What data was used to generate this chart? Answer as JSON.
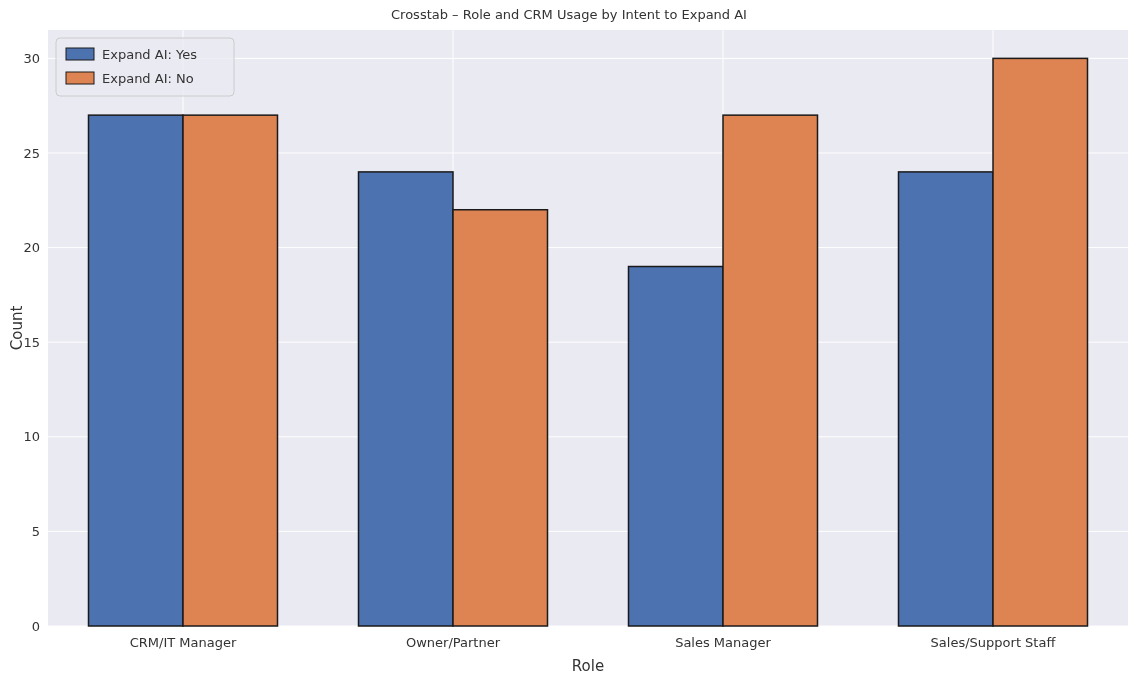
{
  "chart_data": {
    "type": "bar",
    "title": "Crosstab – Role and CRM Usage by Intent to Expand AI",
    "xlabel": "Role",
    "ylabel": "Count",
    "categories": [
      "CRM/IT Manager",
      "Owner/Partner",
      "Sales Manager",
      "Sales/Support Staff"
    ],
    "series": [
      {
        "name": "Expand AI: Yes",
        "color": "#4c72b0",
        "values": [
          27,
          24,
          19,
          24
        ]
      },
      {
        "name": "Expand AI: No",
        "color": "#dd8452",
        "values": [
          27,
          22,
          27,
          30
        ]
      }
    ],
    "ylim": [
      0,
      31.5
    ],
    "yticks": [
      0,
      5,
      10,
      15,
      20,
      25,
      30
    ],
    "grid": true,
    "legend": "top left"
  }
}
